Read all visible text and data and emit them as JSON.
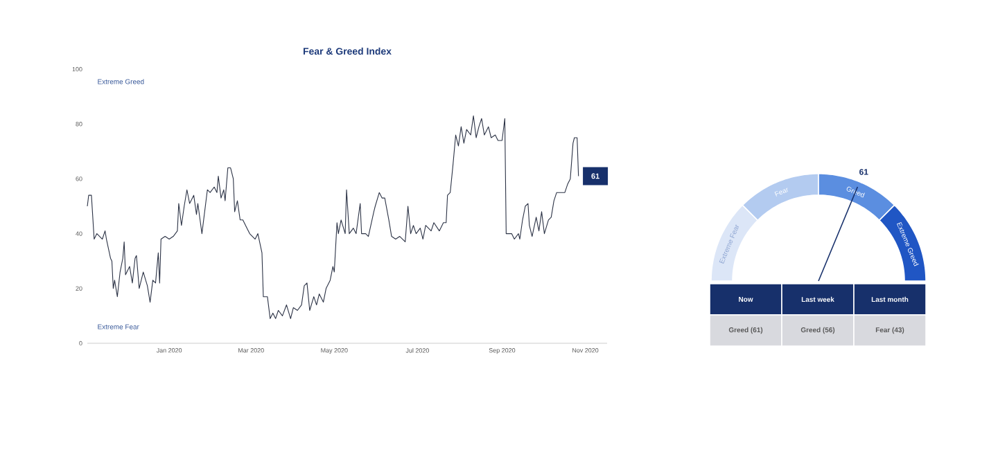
{
  "chart_data": [
    {
      "type": "line",
      "title": "Fear & Greed Index",
      "x": [
        "2019-11-02",
        "2019-11-03",
        "2019-11-05",
        "2019-11-07",
        "2019-11-09",
        "2019-11-13",
        "2019-11-15",
        "2019-11-16",
        "2019-11-19",
        "2019-11-20",
        "2019-11-21",
        "2019-11-22",
        "2019-11-24",
        "2019-11-26",
        "2019-11-28",
        "2019-11-29",
        "2019-11-30",
        "2019-12-03",
        "2019-12-05",
        "2019-12-07",
        "2019-12-08",
        "2019-12-10",
        "2019-12-13",
        "2019-12-16",
        "2019-12-18",
        "2019-12-20",
        "2019-12-22",
        "2019-12-24",
        "2019-12-25",
        "2019-12-26",
        "2019-12-29",
        "2020-01-01",
        "2020-01-04",
        "2020-01-07",
        "2020-01-08",
        "2020-01-10",
        "2020-01-12",
        "2020-01-14",
        "2020-01-16",
        "2020-01-19",
        "2020-01-21",
        "2020-01-22",
        "2020-01-25",
        "2020-01-27",
        "2020-01-29",
        "2020-01-31",
        "2020-02-03",
        "2020-02-05",
        "2020-02-06",
        "2020-02-08",
        "2020-02-10",
        "2020-02-11",
        "2020-02-13",
        "2020-02-15",
        "2020-02-17",
        "2020-02-18",
        "2020-02-20",
        "2020-02-22",
        "2020-02-24",
        "2020-02-27",
        "2020-02-29",
        "2020-03-04",
        "2020-03-06",
        "2020-03-09",
        "2020-03-10",
        "2020-03-13",
        "2020-03-15",
        "2020-03-17",
        "2020-03-19",
        "2020-03-21",
        "2020-03-24",
        "2020-03-27",
        "2020-03-30",
        "2020-04-01",
        "2020-04-04",
        "2020-04-07",
        "2020-04-09",
        "2020-04-11",
        "2020-04-13",
        "2020-04-16",
        "2020-04-18",
        "2020-04-20",
        "2020-04-23",
        "2020-04-25",
        "2020-04-28",
        "2020-04-30",
        "2020-05-01",
        "2020-05-03",
        "2020-05-04",
        "2020-05-06",
        "2020-05-09",
        "2020-05-10",
        "2020-05-12",
        "2020-05-15",
        "2020-05-17",
        "2020-05-20",
        "2020-05-21",
        "2020-05-24",
        "2020-05-26",
        "2020-05-30",
        "2020-05-31",
        "2020-06-03",
        "2020-06-05",
        "2020-06-07",
        "2020-06-10",
        "2020-06-12",
        "2020-06-15",
        "2020-06-18",
        "2020-06-22",
        "2020-06-24",
        "2020-06-26",
        "2020-06-28",
        "2020-06-30",
        "2020-07-03",
        "2020-07-05",
        "2020-07-07",
        "2020-07-11",
        "2020-07-13",
        "2020-07-17",
        "2020-07-20",
        "2020-07-22",
        "2020-07-23",
        "2020-07-25",
        "2020-07-27",
        "2020-07-29",
        "2020-07-31",
        "2020-08-02",
        "2020-08-04",
        "2020-08-06",
        "2020-08-09",
        "2020-08-11",
        "2020-08-13",
        "2020-08-15",
        "2020-08-17",
        "2020-08-19",
        "2020-08-22",
        "2020-08-24",
        "2020-08-27",
        "2020-08-29",
        "2020-09-01",
        "2020-09-03",
        "2020-09-04",
        "2020-09-06",
        "2020-09-08",
        "2020-09-10",
        "2020-09-13",
        "2020-09-14",
        "2020-09-16",
        "2020-09-18",
        "2020-09-20",
        "2020-09-21",
        "2020-09-23",
        "2020-09-26",
        "2020-09-28",
        "2020-09-30",
        "2020-10-02",
        "2020-10-05",
        "2020-10-07",
        "2020-10-09",
        "2020-10-11",
        "2020-10-14",
        "2020-10-17",
        "2020-10-19",
        "2020-10-21",
        "2020-10-23",
        "2020-10-24",
        "2020-10-26",
        "2020-10-27"
      ],
      "series": [
        {
          "color": "#2b3245",
          "values": [
            50,
            54,
            54,
            38,
            40,
            38,
            41,
            38,
            31,
            30,
            20,
            23,
            17,
            26,
            31,
            37,
            25,
            28,
            22,
            31,
            32,
            20,
            26,
            21,
            15,
            23,
            22,
            33,
            22,
            38,
            39,
            38,
            39,
            41,
            51,
            43,
            50,
            56,
            51,
            54,
            47,
            51,
            40,
            48,
            56,
            55,
            57,
            55,
            61,
            53,
            56,
            52,
            64,
            64,
            60,
            48,
            52,
            45,
            45,
            42,
            40,
            38,
            40,
            33,
            17,
            17,
            9,
            11,
            9,
            12,
            10,
            14,
            9,
            13,
            12,
            14,
            21,
            22,
            12,
            17,
            14,
            18,
            15,
            20,
            23,
            28,
            26,
            44,
            40,
            45,
            40,
            56,
            40,
            42,
            40,
            51,
            40,
            40,
            39,
            48,
            50,
            55,
            53,
            53,
            45,
            39,
            38,
            39,
            37,
            50,
            40,
            43,
            40,
            42,
            38,
            43,
            41,
            44,
            41,
            44,
            44,
            54,
            55,
            65,
            76,
            72,
            79,
            73,
            78,
            76,
            83,
            75,
            79,
            82,
            76,
            79,
            75,
            76,
            74,
            74,
            82,
            40,
            40,
            40,
            38,
            40,
            38,
            45,
            50,
            51,
            43,
            39,
            46,
            41,
            48,
            40,
            45,
            46,
            52,
            55,
            55,
            55,
            58,
            60,
            73,
            75,
            75,
            61
          ]
        }
      ],
      "xlim": [
        "2019-11-02",
        "2020-11-17"
      ],
      "xticks": [
        {
          "value": "2020-01-01",
          "label": "Jan 2020"
        },
        {
          "value": "2020-03-01",
          "label": "Mar 2020"
        },
        {
          "value": "2020-05-01",
          "label": "May 2020"
        },
        {
          "value": "2020-07-01",
          "label": "Jul 2020"
        },
        {
          "value": "2020-09-01",
          "label": "Sep 2020"
        },
        {
          "value": "2020-11-01",
          "label": "Nov 2020"
        }
      ],
      "ylim": [
        0,
        100
      ],
      "yticks": [
        0,
        20,
        40,
        60,
        80,
        100
      ],
      "annotations": [
        "Extreme Greed",
        "Extreme Fear",
        {
          "text": "61",
          "x": "2020-10-27",
          "y": 61
        }
      ]
    },
    {
      "type": "donut",
      "categories": [
        "Extreme Fear",
        "Fear",
        "Greed",
        "Extreme Greed"
      ],
      "values": [
        25,
        25,
        25,
        25
      ],
      "colors": [
        "#dce6f7",
        "#b3cbf0",
        "#5b8ee0",
        "#2056c4"
      ],
      "needle": "Greed",
      "annotations": [
        "61"
      ]
    },
    {
      "type": "other",
      "annotations": [
        "Now",
        "Last week",
        "Last month",
        "Greed (61)",
        "Greed (56)",
        "Fear (43)"
      ]
    }
  ]
}
